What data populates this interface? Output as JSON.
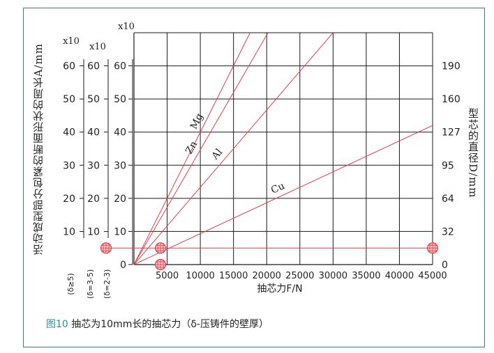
{
  "caption": {
    "fig_label": "图10",
    "text": " 抽芯为10mm长的抽芯力（δ-压铸件的壁厚）"
  },
  "chart_data": {
    "type": "line",
    "xlabel": "抽芯力F/N",
    "x_ticks": [
      5000,
      10000,
      15000,
      20000,
      25000,
      30000,
      35000,
      40000,
      45000
    ],
    "xlim": [
      0,
      45000
    ],
    "y_axes": [
      {
        "id": "d5",
        "multiplier_label": "x10",
        "ticks": [
          10,
          20,
          30,
          40,
          50,
          60
        ],
        "condition_label": "(δ≥5)"
      },
      {
        "id": "d3_5",
        "multiplier_label": "x10",
        "ticks": [
          10,
          20,
          30,
          40,
          50,
          60
        ],
        "condition_label": "(δ=3-5)"
      },
      {
        "id": "d2_3",
        "multiplier_label": "x10",
        "ticks": [
          0,
          10,
          20,
          30,
          40,
          50,
          60
        ],
        "condition_label": "(δ=2-3)"
      }
    ],
    "ylabel_left": "活动成型部分包紧的断面形状的周长A/mm",
    "ylim": [
      0,
      70
    ],
    "right_axis": {
      "label": "型芯的直径D/mm",
      "ticks": [
        0,
        32,
        64,
        95,
        127,
        160,
        190
      ]
    },
    "series": [
      {
        "name": "Mg",
        "x": [
          0,
          17500
        ],
        "y": [
          0,
          70
        ]
      },
      {
        "name": "Zn",
        "x": [
          0,
          20200
        ],
        "y": [
          0,
          70
        ]
      },
      {
        "name": "Al",
        "x": [
          0,
          30000
        ],
        "y": [
          0,
          70
        ]
      },
      {
        "name": "Cu",
        "x": [
          0,
          45000
        ],
        "y": [
          0,
          42
        ]
      }
    ],
    "reference_line": {
      "y": 5
    },
    "markers": [
      {
        "axis": "d5",
        "y": 5
      },
      {
        "axis": "d2_3",
        "x": 4000,
        "y": 5
      },
      {
        "axis": "d2_3",
        "x": 4000,
        "y": 0
      },
      {
        "axis": "d2_3",
        "x": 45000,
        "y": 5
      }
    ],
    "colors": {
      "series": "#e0404a",
      "grid": "#1a1a1a",
      "frame": "#3a7d86"
    }
  }
}
